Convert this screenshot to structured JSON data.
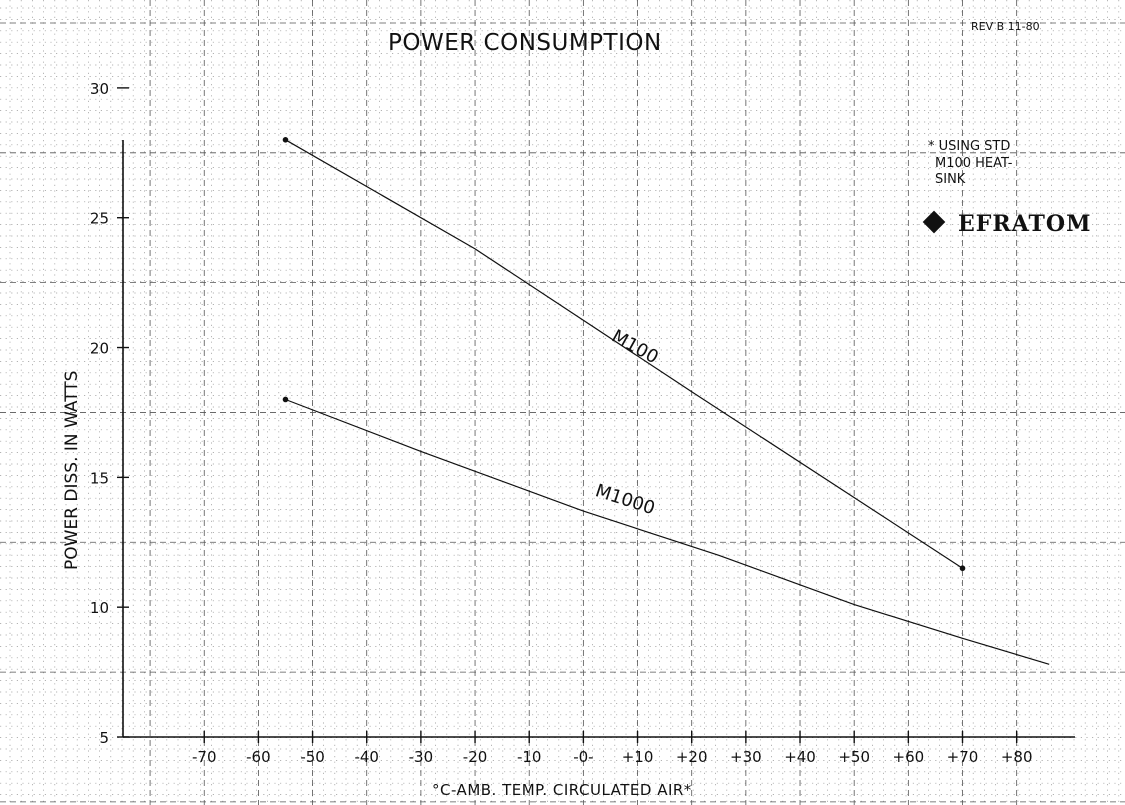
{
  "title": "POWER CONSUMPTION",
  "revision": "REV B  11-80",
  "footnote": [
    "* USING STD",
    "M100 HEAT-",
    "SINK"
  ],
  "brand": "EFRATOM",
  "chart_data": {
    "type": "line",
    "title": "POWER CONSUMPTION",
    "xlabel": "°C-AMB. TEMP. CIRCULATED AIR*",
    "ylabel": "POWER DISS. IN WATTS",
    "xlim": [
      -85,
      88
    ],
    "ylim": [
      5,
      33
    ],
    "x_ticks": [
      -70,
      -60,
      -50,
      -40,
      -30,
      -20,
      -10,
      0,
      10,
      20,
      30,
      40,
      50,
      60,
      70,
      80
    ],
    "x_tick_labels": [
      "-70",
      "-60",
      "-50",
      "-40",
      "-30",
      "-20",
      "-10",
      "-0-",
      "+10",
      "+20",
      "+30",
      "+40",
      "+50",
      "+60",
      "+70",
      "+80"
    ],
    "y_ticks": [
      5,
      10,
      15,
      20,
      25,
      30
    ],
    "y_tick_labels": [
      "5",
      "10",
      "15",
      "20",
      "25",
      "30"
    ],
    "grid": true,
    "series": [
      {
        "name": "M100",
        "x": [
          -55,
          -20,
          20,
          70
        ],
        "y": [
          28,
          23.8,
          18.3,
          11.5
        ]
      },
      {
        "name": "M1000",
        "x": [
          -55,
          -30,
          0,
          25,
          50,
          70,
          86
        ],
        "y": [
          18,
          16,
          13.7,
          12,
          10.1,
          8.8,
          7.8
        ]
      }
    ]
  }
}
